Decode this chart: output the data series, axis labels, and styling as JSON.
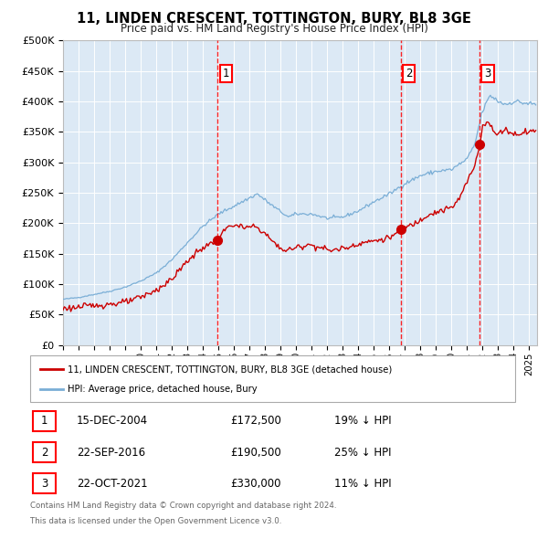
{
  "title": "11, LINDEN CRESCENT, TOTTINGTON, BURY, BL8 3GE",
  "subtitle": "Price paid vs. HM Land Registry's House Price Index (HPI)",
  "legend_label_red": "11, LINDEN CRESCENT, TOTTINGTON, BURY, BL8 3GE (detached house)",
  "legend_label_blue": "HPI: Average price, detached house, Bury",
  "ylim": [
    0,
    500000
  ],
  "yticks": [
    0,
    50000,
    100000,
    150000,
    200000,
    250000,
    300000,
    350000,
    400000,
    450000,
    500000
  ],
  "ytick_labels": [
    "£0",
    "£50K",
    "£100K",
    "£150K",
    "£200K",
    "£250K",
    "£300K",
    "£350K",
    "£400K",
    "£450K",
    "£500K"
  ],
  "xlim_start": 1995.0,
  "xlim_end": 2025.5,
  "xtick_years": [
    1995,
    1996,
    1997,
    1998,
    1999,
    2000,
    2001,
    2002,
    2003,
    2004,
    2005,
    2006,
    2007,
    2008,
    2009,
    2010,
    2011,
    2012,
    2013,
    2014,
    2015,
    2016,
    2017,
    2018,
    2019,
    2020,
    2021,
    2022,
    2023,
    2024,
    2025
  ],
  "background_color": "#dce9f5",
  "grid_color": "#ffffff",
  "red_color": "#cc0000",
  "blue_color": "#7aaed6",
  "sale_dates": [
    2004.958,
    2016.722,
    2021.806
  ],
  "sale_prices": [
    172500,
    190500,
    330000
  ],
  "sale_labels": [
    "1",
    "2",
    "3"
  ],
  "footer_line1": "Contains HM Land Registry data © Crown copyright and database right 2024.",
  "footer_line2": "This data is licensed under the Open Government Licence v3.0.",
  "table_data": [
    [
      "1",
      "15-DEC-2004",
      "£172,500",
      "19% ↓ HPI"
    ],
    [
      "2",
      "22-SEP-2016",
      "£190,500",
      "25% ↓ HPI"
    ],
    [
      "3",
      "22-OCT-2021",
      "£330,000",
      "11% ↓ HPI"
    ]
  ]
}
